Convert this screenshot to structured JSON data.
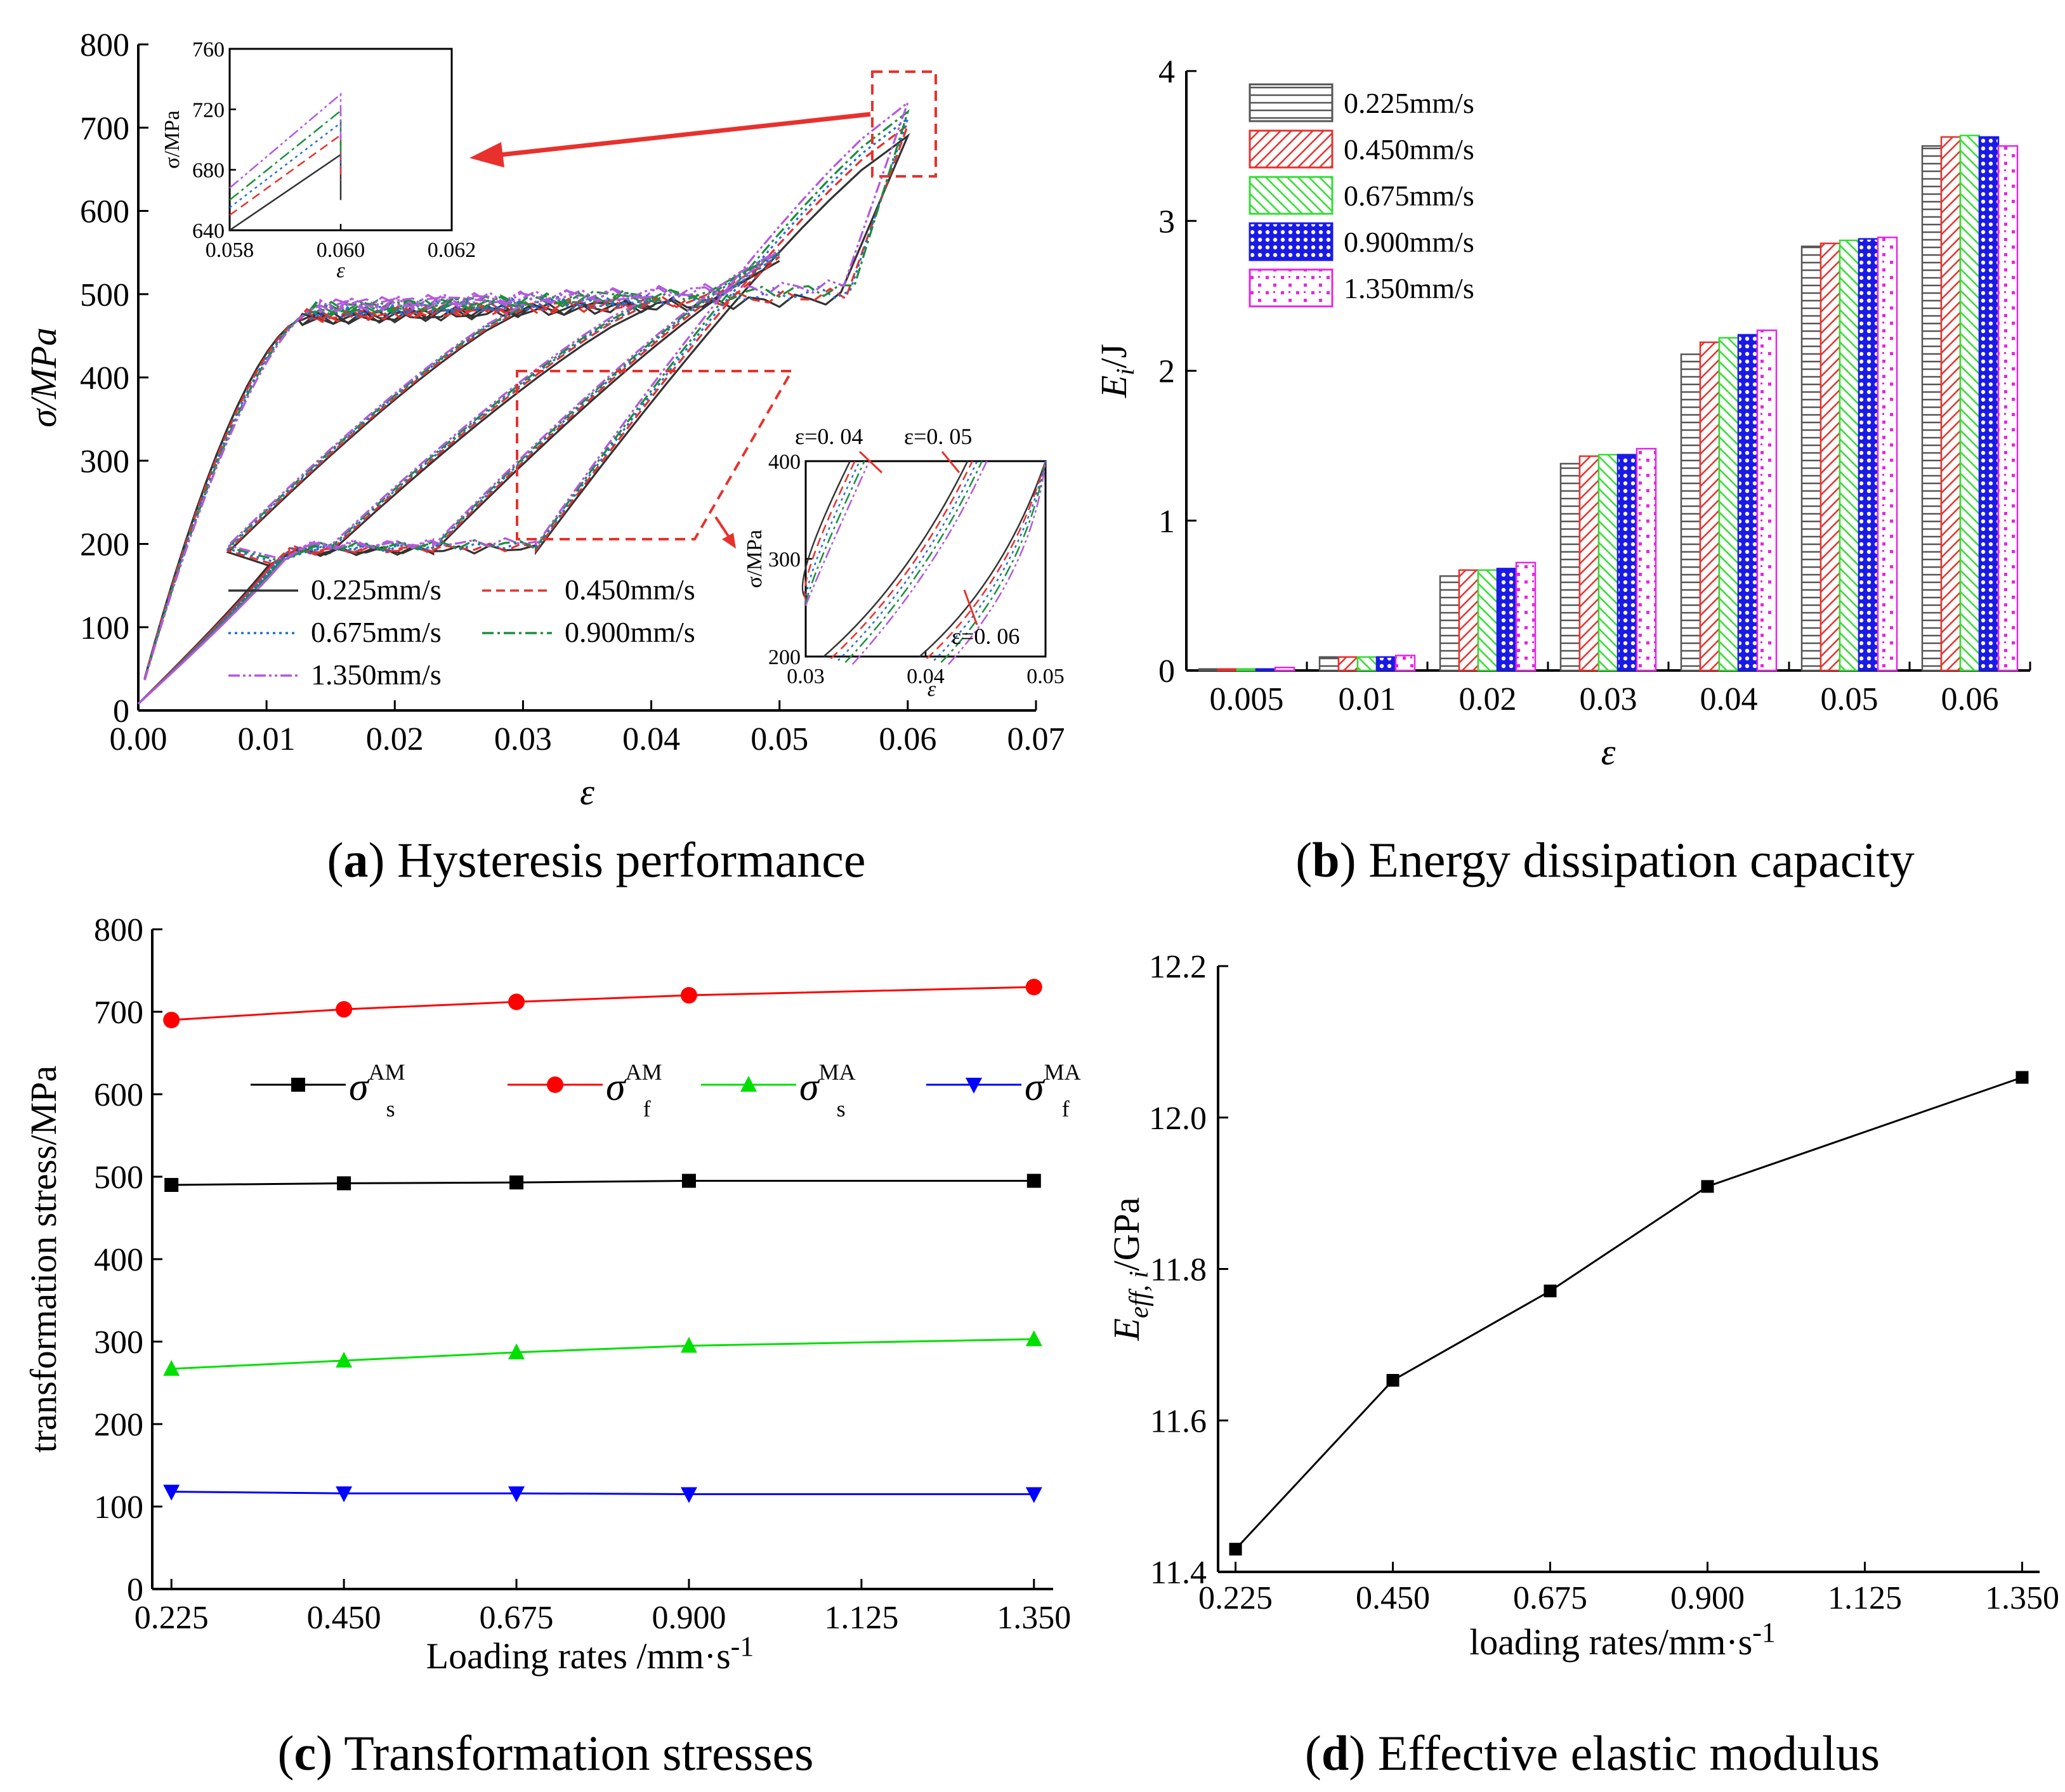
{
  "chart_data": [
    {
      "id": "a",
      "type": "line",
      "caption_letter": "a",
      "caption_text": " Hysteresis performance",
      "xlabel": "ε",
      "ylabel": "σ/MPa",
      "xlim": [
        0,
        0.07
      ],
      "ylim": [
        0,
        800
      ],
      "xticks": [
        "0.00",
        "0.01",
        "0.02",
        "0.03",
        "0.04",
        "0.05",
        "0.06",
        "0.07"
      ],
      "yticks": [
        "0",
        "100",
        "200",
        "300",
        "400",
        "500",
        "600",
        "700",
        "800"
      ],
      "series": [
        {
          "name": "0.225mm/s",
          "color": "#333333",
          "dash": "solid",
          "peaks": [
            [
              0.03,
              480
            ],
            [
              0.04,
              485
            ],
            [
              0.05,
              540
            ],
            [
              0.06,
              690
            ]
          ]
        },
        {
          "name": "0.450mm/s",
          "color": "#e8312d",
          "dash": "dashed",
          "peaks": [
            [
              0.03,
              482
            ],
            [
              0.04,
              490
            ],
            [
              0.05,
              545
            ],
            [
              0.06,
              703
            ]
          ]
        },
        {
          "name": "0.675mm/s",
          "color": "#1f6fd6",
          "dash": "dotted",
          "peaks": [
            [
              0.03,
              484
            ],
            [
              0.04,
              492
            ],
            [
              0.05,
              548
            ],
            [
              0.06,
              711
            ]
          ]
        },
        {
          "name": "0.900mm/s",
          "color": "#1a8f3c",
          "dash": "dashdot",
          "peaks": [
            [
              0.03,
              485
            ],
            [
              0.04,
              494
            ],
            [
              0.05,
              550
            ],
            [
              0.06,
              719
            ]
          ]
        },
        {
          "name": "1.350mm/s",
          "color": "#b458e0",
          "dash": "dashdotdot",
          "peaks": [
            [
              0.03,
              487
            ],
            [
              0.04,
              497
            ],
            [
              0.05,
              553
            ],
            [
              0.06,
              730
            ]
          ]
        }
      ],
      "inset_top": {
        "xlabel": "ε",
        "ylabel": "σ/MPa",
        "xlim": [
          0.058,
          0.062
        ],
        "ylim": [
          640,
          760
        ],
        "xticks": [
          "0.058",
          "0.060",
          "0.062"
        ],
        "yticks": [
          "640",
          "680",
          "720",
          "760"
        ]
      },
      "inset_bottom": {
        "xlabel": "ε",
        "ylabel": "σ/MPa",
        "xlim": [
          0.03,
          0.05
        ],
        "ylim": [
          200,
          400
        ],
        "xticks": [
          "0.03",
          "0.04",
          "0.05"
        ],
        "yticks": [
          "200",
          "300",
          "400"
        ],
        "annotations": [
          "ε=0. 04",
          "ε=0. 05",
          "ε=0. 06"
        ]
      }
    },
    {
      "id": "b",
      "type": "bar",
      "caption_letter": "b",
      "caption_text": " Energy dissipation capacity",
      "xlabel": "ε",
      "ylabel": "E",
      "ylabel_sub": "i",
      "ylabel_unit": "/J",
      "ylim": [
        0,
        4
      ],
      "yticks": [
        "0",
        "1",
        "2",
        "3",
        "4"
      ],
      "categories": [
        "0.005",
        "0.01",
        "0.02",
        "0.03",
        "0.04",
        "0.05",
        "0.06"
      ],
      "series": [
        {
          "name": "0.225mm/s",
          "color": "#555555",
          "pattern": "hlines",
          "values": [
            0.01,
            0.09,
            0.63,
            1.38,
            2.11,
            2.83,
            3.5
          ]
        },
        {
          "name": "0.450mm/s",
          "color": "#e8312d",
          "pattern": "diag",
          "values": [
            0.01,
            0.09,
            0.67,
            1.43,
            2.19,
            2.85,
            3.56
          ]
        },
        {
          "name": "0.675mm/s",
          "color": "#33dd33",
          "pattern": "diag",
          "values": [
            0.01,
            0.09,
            0.67,
            1.44,
            2.22,
            2.87,
            3.57
          ]
        },
        {
          "name": "0.900mm/s",
          "color": "#1a1ae6",
          "pattern": "cross",
          "values": [
            0.01,
            0.09,
            0.68,
            1.44,
            2.24,
            2.88,
            3.56
          ]
        },
        {
          "name": "1.350mm/s",
          "color": "#e625e6",
          "pattern": "dots",
          "values": [
            0.02,
            0.1,
            0.72,
            1.48,
            2.27,
            2.89,
            3.5
          ]
        }
      ]
    },
    {
      "id": "c",
      "type": "line",
      "caption_letter": "c",
      "caption_text": " Transformation stresses",
      "xlabel": "Loading rates /mm·s",
      "xlabel_sup": "-1",
      "ylabel": "transformation stress/MPa",
      "xlim": [
        0.2,
        1.375
      ],
      "ylim": [
        0,
        800
      ],
      "xticks": [
        "0.225",
        "0.450",
        "0.675",
        "0.900",
        "1.125",
        "1.350"
      ],
      "yticks": [
        "0",
        "100",
        "200",
        "300",
        "400",
        "500",
        "600",
        "700",
        "800"
      ],
      "x": [
        0.225,
        0.45,
        0.675,
        0.9,
        1.35
      ],
      "series": [
        {
          "name": "σ",
          "sup": "AM",
          "sub": "s",
          "color": "#000000",
          "marker": "square",
          "values": [
            490,
            492,
            493,
            495,
            495
          ]
        },
        {
          "name": "σ",
          "sup": "AM",
          "sub": "f",
          "color": "#ff0000",
          "marker": "circle",
          "values": [
            690,
            703,
            712,
            720,
            730
          ]
        },
        {
          "name": "σ",
          "sup": "MA",
          "sub": "s",
          "color": "#00e000",
          "marker": "triangle-up",
          "values": [
            267,
            277,
            287,
            295,
            303
          ]
        },
        {
          "name": "σ",
          "sup": "MA",
          "sub": "f",
          "color": "#0000ff",
          "marker": "triangle-down",
          "values": [
            118,
            116,
            116,
            115,
            115
          ]
        }
      ]
    },
    {
      "id": "d",
      "type": "line",
      "caption_letter": "d",
      "caption_text": " Effective elastic modulus",
      "xlabel": "loading rates/mm·s",
      "xlabel_sup": "-1",
      "ylabel": "E",
      "ylabel_sub": "eff, i",
      "ylabel_unit": "/GPa",
      "xlim": [
        0.2,
        1.375
      ],
      "ylim": [
        11.4,
        12.2
      ],
      "xticks": [
        "0.225",
        "0.450",
        "0.675",
        "0.900",
        "1.125",
        "1.350"
      ],
      "yticks": [
        "11.4",
        "11.6",
        "11.8",
        "12.0",
        "12.2"
      ],
      "x": [
        0.225,
        0.45,
        0.675,
        0.9,
        1.35
      ],
      "series": [
        {
          "name": "E_eff",
          "color": "#000000",
          "marker": "square",
          "values": [
            11.43,
            11.653,
            11.771,
            11.909,
            12.053
          ]
        }
      ]
    }
  ]
}
